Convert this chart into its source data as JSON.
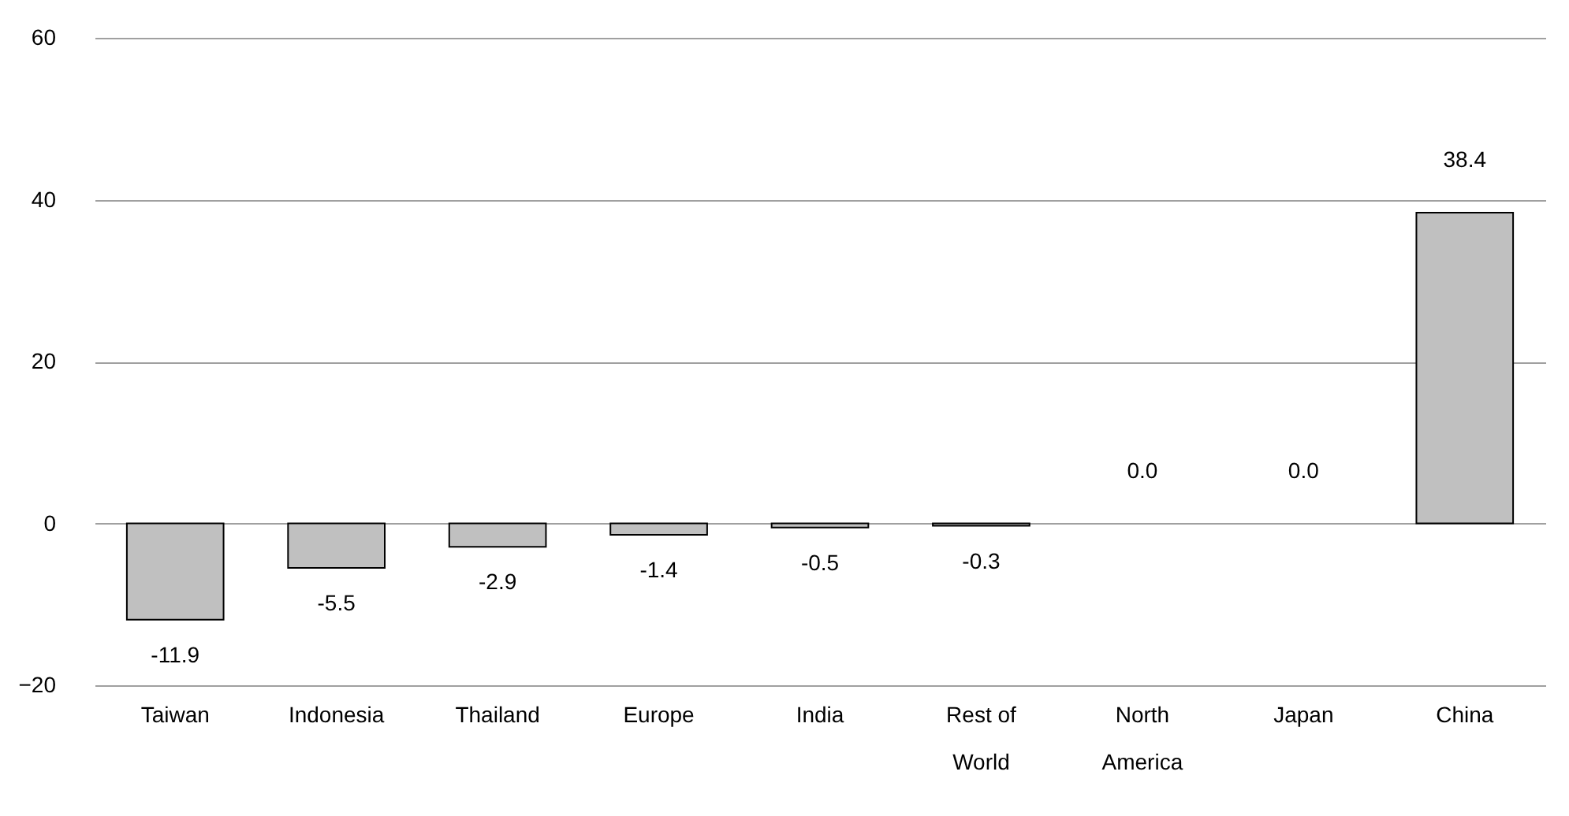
{
  "chart_data": {
    "type": "bar",
    "categories": [
      "Taiwan",
      "Indonesia",
      "Thailand",
      "Europe",
      "India",
      "Rest of World",
      "North America",
      "Japan",
      "China"
    ],
    "values": [
      -11.9,
      -5.5,
      -2.9,
      -1.4,
      -0.5,
      -0.3,
      0.0,
      0.0,
      38.4
    ],
    "value_labels": [
      "-11.9",
      "-5.5",
      "-2.9",
      "-1.4",
      "-0.5",
      "-0.3",
      "0.0",
      "0.0",
      "38.4"
    ],
    "color": "#c0c0c0",
    "ylim": [
      -20,
      60
    ],
    "yticks": [
      -20,
      0,
      20,
      40,
      60
    ],
    "grid": "y"
  }
}
